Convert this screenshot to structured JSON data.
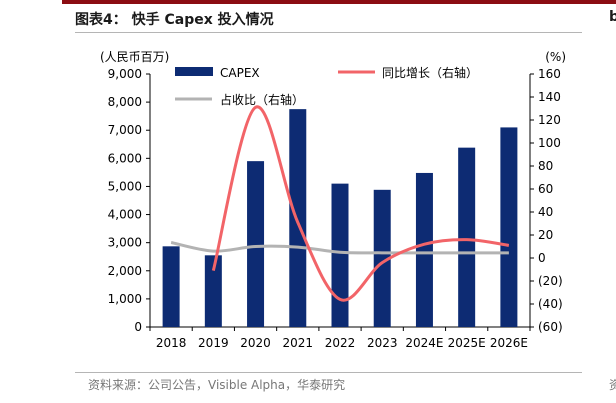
{
  "header": {
    "title": "图表4： 快手 Capex 投入情况",
    "edge_letter": "b"
  },
  "footer": {
    "source": "资料来源：公司公告，Visible Alpha，华泰研究",
    "edge_text": "资"
  },
  "colors": {
    "bar": "#0d2b73",
    "yoy_line": "#f26468",
    "ratio_line": "#b3b3b3",
    "accent": "#8b0d12"
  },
  "chart_data": {
    "type": "bar",
    "categories": [
      "2018",
      "2019",
      "2020",
      "2021",
      "2022",
      "2023",
      "2024E",
      "2025E",
      "2026E"
    ],
    "left_axis": {
      "unit_label": "(人民币百万)",
      "ylim": [
        0,
        9000
      ],
      "ticks": [
        "0",
        "1,000",
        "2,000",
        "3,000",
        "4,000",
        "5,000",
        "6,000",
        "7,000",
        "8,000",
        "9,000"
      ]
    },
    "right_axis": {
      "unit_label": "(%)",
      "ylim": [
        -60,
        160
      ],
      "ticks": [
        "(60)",
        "(40)",
        "(20)",
        "0",
        "20",
        "40",
        "60",
        "80",
        "100",
        "120",
        "140",
        "160"
      ]
    },
    "series": [
      {
        "name": "CAPEX",
        "type": "bar",
        "axis": "left",
        "values": [
          2870,
          2550,
          5900,
          7750,
          5100,
          4880,
          5480,
          6380,
          7100
        ]
      },
      {
        "name": "同比增长（右轴）",
        "type": "line",
        "axis": "right",
        "values": [
          null,
          -11,
          131,
          31,
          -36,
          -4,
          12,
          16,
          11
        ]
      },
      {
        "name": "占收比（右轴）",
        "type": "line",
        "axis": "right",
        "values": [
          13.5,
          6,
          10,
          9.5,
          5,
          4.5,
          4.5,
          4.5,
          4.5
        ]
      }
    ],
    "legend": "top",
    "grid": false
  }
}
